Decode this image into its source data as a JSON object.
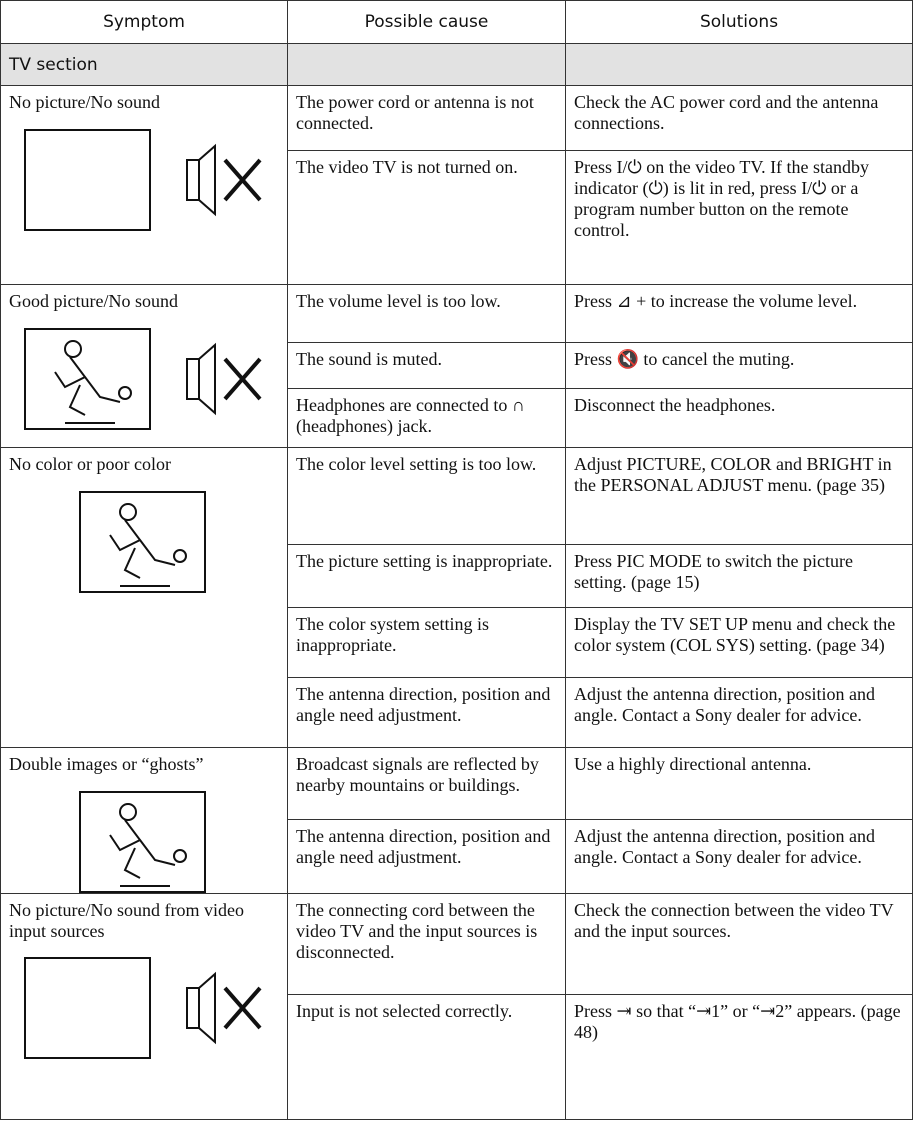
{
  "header": [
    "Symptom",
    "Possible cause",
    "Solutions"
  ],
  "section": "TV section",
  "groups": [
    {
      "symptom": "No picture/No sound",
      "rows": [
        {
          "cause": "The power cord or antenna is not connected.",
          "solution": "Check the AC power cord and the antenna connections."
        },
        {
          "cause": "The video TV is not turned on.",
          "solution": "Press I/⏻ on the video TV. If the standby indicator (⏻) is lit in red, press I/⏻ or a program number button on the remote control."
        }
      ]
    },
    {
      "symptom": "Good picture/No sound",
      "rows": [
        {
          "cause": "The volume level is too low.",
          "solution": "Press ⊿ + to increase the volume level."
        },
        {
          "cause": "The sound is muted.",
          "solution": "Press 🔇 to cancel the muting."
        },
        {
          "cause": "Headphones are connected to ∩ (headphones) jack.",
          "solution": "Disconnect the headphones."
        }
      ]
    },
    {
      "symptom": "No color or poor color",
      "rows": [
        {
          "cause": "The color level setting is too low.",
          "solution": "Adjust PICTURE, COLOR and BRIGHT in the PERSONAL ADJUST menu. (page 35)"
        },
        {
          "cause": "The picture setting is inappropriate.",
          "solution": "Press PIC MODE to switch the picture setting. (page 15)"
        },
        {
          "cause": "The color system setting is inappropriate.",
          "solution": "Display the TV SET UP menu and check the color system (COL SYS) setting. (page 34)"
        },
        {
          "cause": "The antenna direction, position and angle need adjustment.",
          "solution": "Adjust the antenna direction, position and angle. Contact a Sony dealer for advice."
        }
      ]
    },
    {
      "symptom": "Double images or “ghosts”",
      "rows": [
        {
          "cause": "Broadcast signals are reflected by nearby mountains or buildings.",
          "solution": "Use a highly directional antenna."
        },
        {
          "cause": "The antenna direction, position and angle need adjustment.",
          "solution": "Adjust the antenna direction, position and angle. Contact a Sony dealer for advice."
        }
      ]
    },
    {
      "symptom": "No picture/No sound from video input sources",
      "rows": [
        {
          "cause": "The connecting cord between the video TV and the input sources is disconnected.",
          "solution": "Check the connection between the video TV and the input sources."
        },
        {
          "cause": "Input is not selected correctly.",
          "solution": "Press ⇥ so that “⇥1” or “⇥2” appears. (page 48)"
        }
      ]
    }
  ]
}
